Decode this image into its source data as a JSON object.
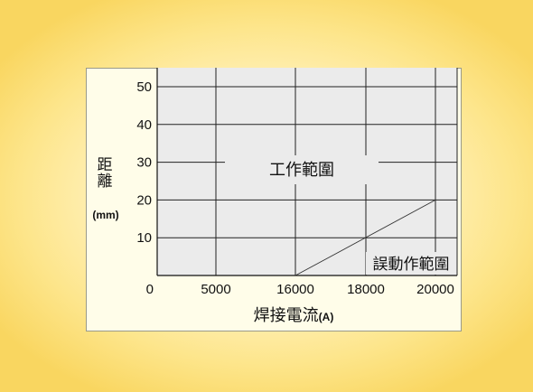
{
  "chart_data": {
    "type": "line",
    "title": "",
    "xlabel": "焊接電流",
    "xlabel_unit": "(A)",
    "ylabel_chars": [
      "距",
      "離"
    ],
    "ylabel_unit": "(mm)",
    "x_ticks": [
      "0",
      "5000",
      "16000",
      "18000",
      "20000"
    ],
    "y_ticks": [
      "10",
      "20",
      "30",
      "40",
      "50"
    ],
    "ylim": [
      0,
      50
    ],
    "grid": true,
    "series": [
      {
        "x": [
          16000,
          20000
        ],
        "y": [
          0,
          20
        ]
      }
    ],
    "annotations": {
      "work_range": "工作範圍",
      "malfunction_range": "誤動作範圍"
    }
  },
  "colors": {
    "plot_background": "#ebebeb",
    "grid": "#222222",
    "boundary_line": "#333333"
  }
}
